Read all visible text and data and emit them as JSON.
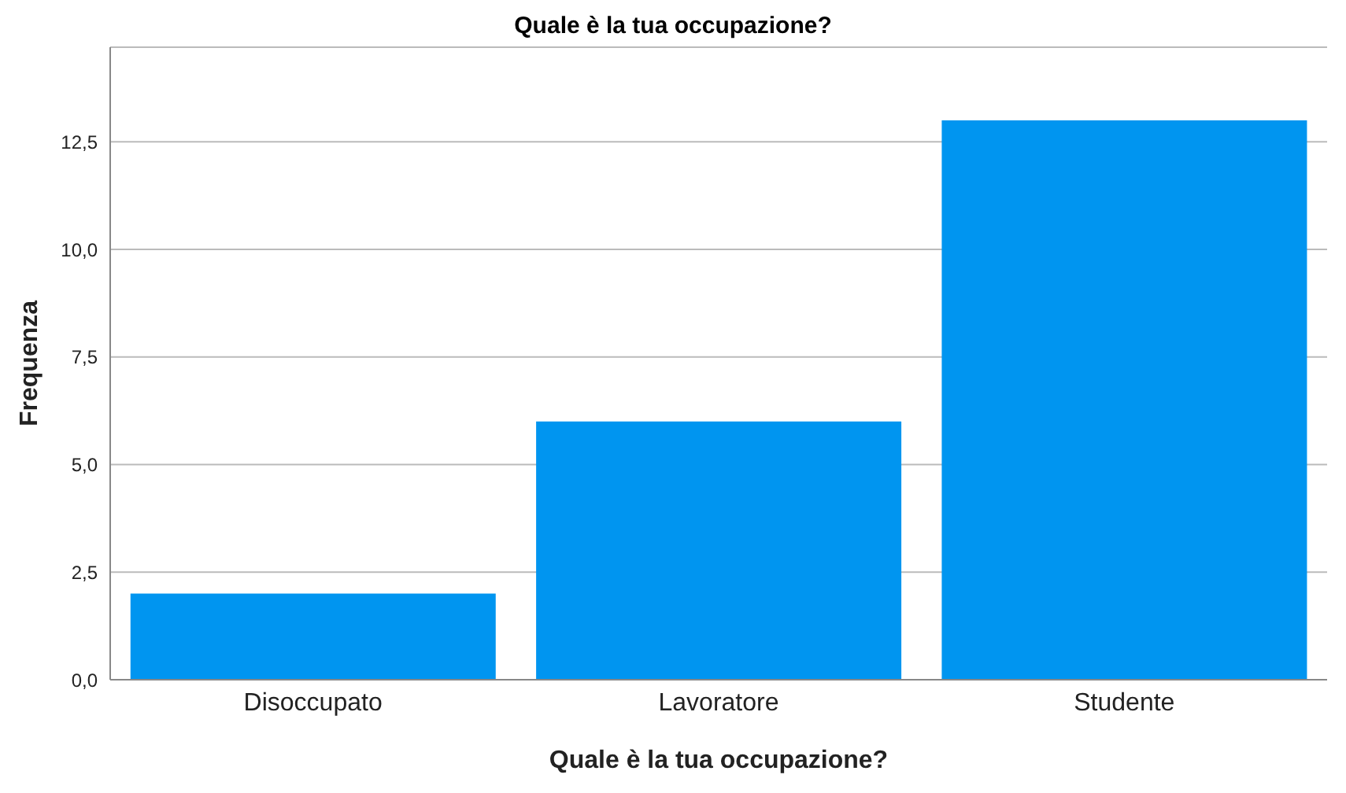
{
  "chart_data": {
    "type": "bar",
    "title": "Quale è la tua occupazione?",
    "xlabel": "Quale è la tua occupazione?",
    "ylabel": "Frequenza",
    "categories": [
      "Disoccupato",
      "Lavoratore",
      "Studente"
    ],
    "values": [
      2,
      6,
      13
    ],
    "color": "#0095f0",
    "ylim": [
      0,
      14.7
    ],
    "yticks": [
      {
        "value": 0,
        "label": "0,0"
      },
      {
        "value": 2.5,
        "label": "2,5"
      },
      {
        "value": 5,
        "label": "5,0"
      },
      {
        "value": 7.5,
        "label": "7,5"
      },
      {
        "value": 10,
        "label": "10,0"
      },
      {
        "value": 12.5,
        "label": "12,5"
      }
    ],
    "grid": "y"
  }
}
